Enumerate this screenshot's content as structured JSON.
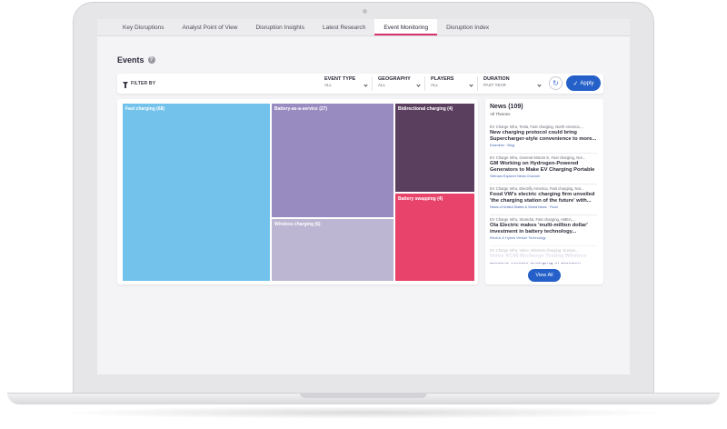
{
  "tabs": [
    {
      "label": "Key Disruptions",
      "active": false
    },
    {
      "label": "Analyst Point of View",
      "active": false
    },
    {
      "label": "Disruption Insights",
      "active": false
    },
    {
      "label": "Latest Research",
      "active": false
    },
    {
      "label": "Event Monitoring",
      "active": true
    },
    {
      "label": "Disruption Index",
      "active": false
    }
  ],
  "events": {
    "title": "Events",
    "help_icon": "question-circle-icon"
  },
  "filters": {
    "filter_by_label": "FILTER BY",
    "event_type": {
      "label": "EVENT TYPE",
      "value": "ALL"
    },
    "geography": {
      "label": "GEOGRAPHY",
      "value": "ALL"
    },
    "players": {
      "label": "PLAYERS",
      "value": "ALL"
    },
    "duration": {
      "label": "DURATION",
      "value": "PAST YEAR"
    },
    "apply_label": "Apply",
    "refresh_icon": "refresh-icon"
  },
  "treemap": {
    "tiles": [
      {
        "label": "Fast charging (68)",
        "color": "#72c2ec"
      },
      {
        "label": "Battery-as-a-service (27)",
        "color": "#978bc0"
      },
      {
        "label": "Wireless charging (6)",
        "color": "#bcb6d2"
      },
      {
        "label": "Bidirectional charging (4)",
        "color": "#5b3f5f"
      },
      {
        "label": "Battery swapping (4)",
        "color": "#e7436b"
      }
    ]
  },
  "news": {
    "title": "News (109)",
    "subtitle": "All Themes",
    "items": [
      {
        "tags": "EV Charge Infra, Tesla, Fast charging, North America,...",
        "headline": "New charging protocol could bring Supercharger-style convenience to more...",
        "source": "Examiner · Blog"
      },
      {
        "tags": "EV Charge Infra, General Motors E, Fast charging, Nor...",
        "headline": "GM Working on Hydrogen-Powered Generators to Make EV Charging Portable",
        "source": "Vietnam Explorer News Channel"
      },
      {
        "tags": "EV Charge Infra, Electrify America, Fast charging, Nor...",
        "headline": "Food VW's electric charging firm unveiled 'the charging station of the future' with...",
        "source": "News of United States & World News · Food"
      },
      {
        "tags": "EV Charge Infra, Storedot, Fast charging, AMEA,...",
        "headline": "Ola Electric makes 'multi-million dollar' investment in battery technology...",
        "source": "Electric & Hybrid Vehicle Technology"
      },
      {
        "tags": "EV Charge Infra, Volvo, Wireless charging, Europe,...",
        "headline": "Volvo XC40 Recharge Testing Wireless Electric Vehicle Charging in Sweden",
        "source": ""
      }
    ],
    "view_all_label": "View All"
  }
}
